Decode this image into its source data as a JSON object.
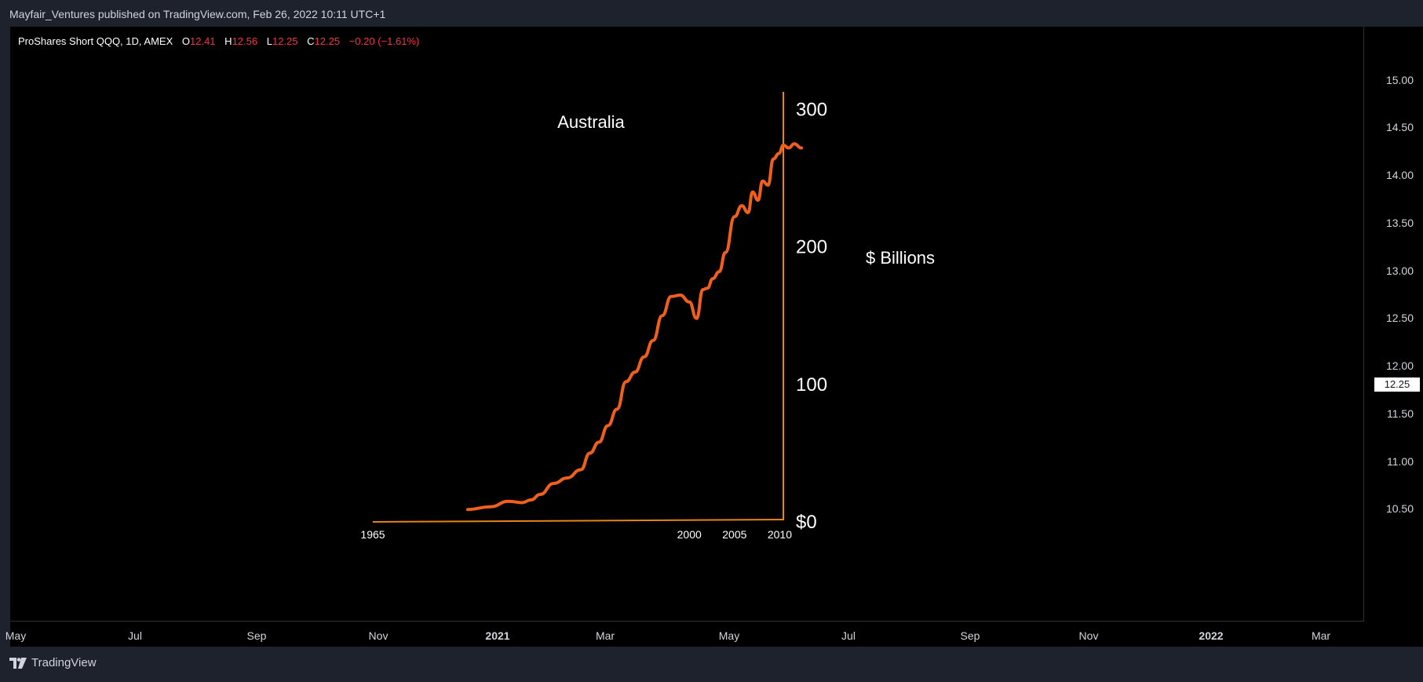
{
  "header": {
    "published": "Mayfair_Ventures published on TradingView.com, Feb 26, 2022 10:11 UTC+1"
  },
  "legend": {
    "symbol": "ProShares Short QQQ, 1D, AMEX",
    "o_label": "O",
    "o_value": "12.41",
    "h_label": "H",
    "h_value": "12.56",
    "l_label": "L",
    "l_value": "12.25",
    "c_label": "C",
    "c_value": "12.25",
    "change": "−0.20 (−1.61%)"
  },
  "price_axis": {
    "ticks": [
      "15.00",
      "14.50",
      "14.00",
      "13.50",
      "13.00",
      "12.50",
      "12.00",
      "11.50",
      "11.00",
      "10.50"
    ],
    "current": "12.25"
  },
  "time_axis": {
    "ticks": [
      "May",
      "Jul",
      "Sep",
      "Nov",
      "2021",
      "Mar",
      "May",
      "Jul",
      "Sep",
      "Nov",
      "2022",
      "Mar"
    ]
  },
  "footer": {
    "brand": "TradingView"
  },
  "colors": {
    "curve": "#f0601c",
    "axis_lines": "#e8821e",
    "background": "#000000",
    "negative": "#f23645"
  },
  "chart_data": {
    "type": "line",
    "title": "Australia",
    "ylabel": "$ Billions",
    "y_ticks": [
      "$0",
      "100",
      "200",
      "300"
    ],
    "ylim": [
      0,
      310
    ],
    "x_ticks": [
      "1965",
      "2000",
      "2005",
      "2010"
    ],
    "xlim": [
      1965,
      2013
    ],
    "series": [
      {
        "x": [
          1975.5,
          1978,
          1980,
          1981.5,
          1982.5,
          1983.5,
          1985,
          1986.5,
          1988,
          1989,
          1990,
          1991,
          1992,
          1993,
          1994,
          1995,
          1996,
          1997,
          1998,
          1999,
          2000,
          2000.8,
          2001.5,
          2002,
          2002.6,
          2003.3,
          2004,
          2005,
          2005.8,
          2006.5,
          2007,
          2007.6,
          2008.1,
          2008.7,
          2009.3,
          2009.9,
          2010.4,
          2011,
          2011.6,
          2012.4
        ],
        "y": [
          9,
          11,
          15,
          14,
          16,
          20,
          28,
          32,
          38,
          50,
          58,
          70,
          82,
          102,
          109,
          120,
          132,
          150,
          164,
          165,
          160,
          148,
          169,
          170,
          177,
          182,
          196,
          222,
          230,
          225,
          240,
          234,
          248,
          245,
          264,
          268,
          274,
          272,
          275,
          272
        ]
      }
    ]
  }
}
